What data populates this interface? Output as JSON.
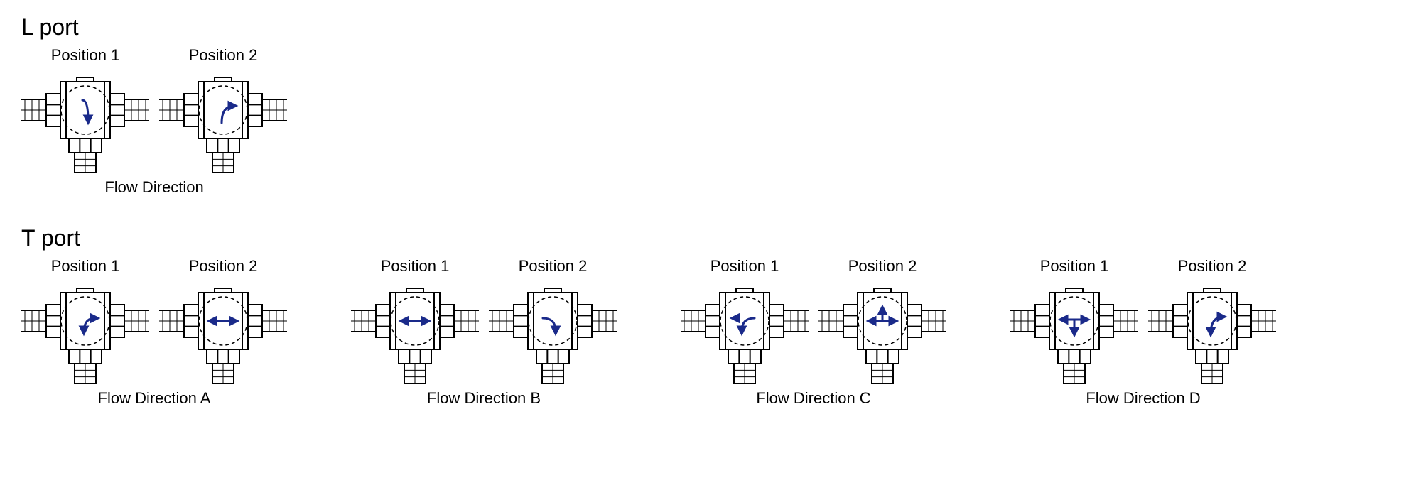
{
  "diagram": {
    "background": "#ffffff",
    "stroke_color": "#000000",
    "stroke_width": 2,
    "arrow_color": "#1a2a8a",
    "arrow_width": 3,
    "dash_color": "#000000",
    "title_fontsize": 32,
    "label_fontsize": 22
  },
  "l_port": {
    "title": "L port",
    "groups": [
      {
        "flow_label": "Flow  Direction",
        "positions": [
          {
            "label": "Position 1",
            "arrow": "L_right_down"
          },
          {
            "label": "Position 2",
            "arrow": "L_right_up_from_down"
          }
        ]
      }
    ]
  },
  "t_port": {
    "title": "T port",
    "groups": [
      {
        "flow_label": "Flow  Direction A",
        "positions": [
          {
            "label": "Position 1",
            "arrow": "L_down_right_up"
          },
          {
            "label": "Position 2",
            "arrow": "H_double"
          }
        ]
      },
      {
        "flow_label": "Flow  Direction B",
        "positions": [
          {
            "label": "Position 1",
            "arrow": "H_double"
          },
          {
            "label": "Position 2",
            "arrow": "L_right_down2"
          }
        ]
      },
      {
        "flow_label": "Flow  Direction C",
        "positions": [
          {
            "label": "Position 1",
            "arrow": "L_left_down"
          },
          {
            "label": "Position 2",
            "arrow": "T_up"
          }
        ]
      },
      {
        "flow_label": "Flow  Direction D",
        "positions": [
          {
            "label": "Position 1",
            "arrow": "T_down"
          },
          {
            "label": "Position 2",
            "arrow": "L_up_right"
          }
        ]
      }
    ]
  }
}
